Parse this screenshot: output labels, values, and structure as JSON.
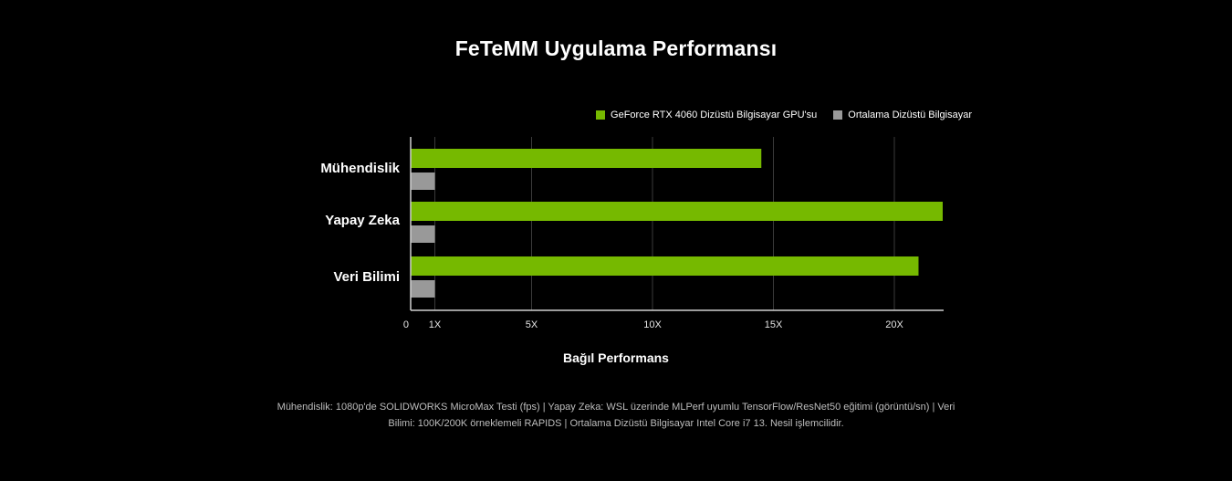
{
  "chart_data": {
    "type": "bar",
    "orientation": "horizontal",
    "title": "FeTeMM Uygulama Performansı",
    "xlabel": "Bağıl Performans",
    "ylabel": "",
    "categories": [
      "Mühendislik",
      "Yapay Zeka",
      "Veri Bilimi"
    ],
    "series": [
      {
        "name": "GeForce RTX 4060 Dizüstü Bilgisayar GPU'su",
        "color": "#76b900",
        "values": [
          14.5,
          22.0,
          21.0
        ]
      },
      {
        "name": "Ortalama Dizüstü Bilgisayar",
        "color": "#999999",
        "values": [
          1,
          1,
          1
        ]
      }
    ],
    "xticks": [
      0,
      1,
      5,
      10,
      15,
      20
    ],
    "xtick_labels": [
      "0",
      "1X",
      "5X",
      "10X",
      "15X",
      "20X"
    ],
    "xlim": [
      0,
      22
    ],
    "grid": true,
    "legend_position": "top-right"
  },
  "footnote": {
    "line1": "Mühendislik: 1080p'de SOLIDWORKS MicroMax Testi (fps) | Yapay Zeka: WSL üzerinde MLPerf uyumlu TensorFlow/ResNet50 eğitimi (görüntü/sn) | Veri",
    "line2": "Bilimi: 100K/200K örneklemeli RAPIDS |  Ortalama Dizüstü Bilgisayar Intel Core i7 13. Nesil işlemcilidir."
  }
}
